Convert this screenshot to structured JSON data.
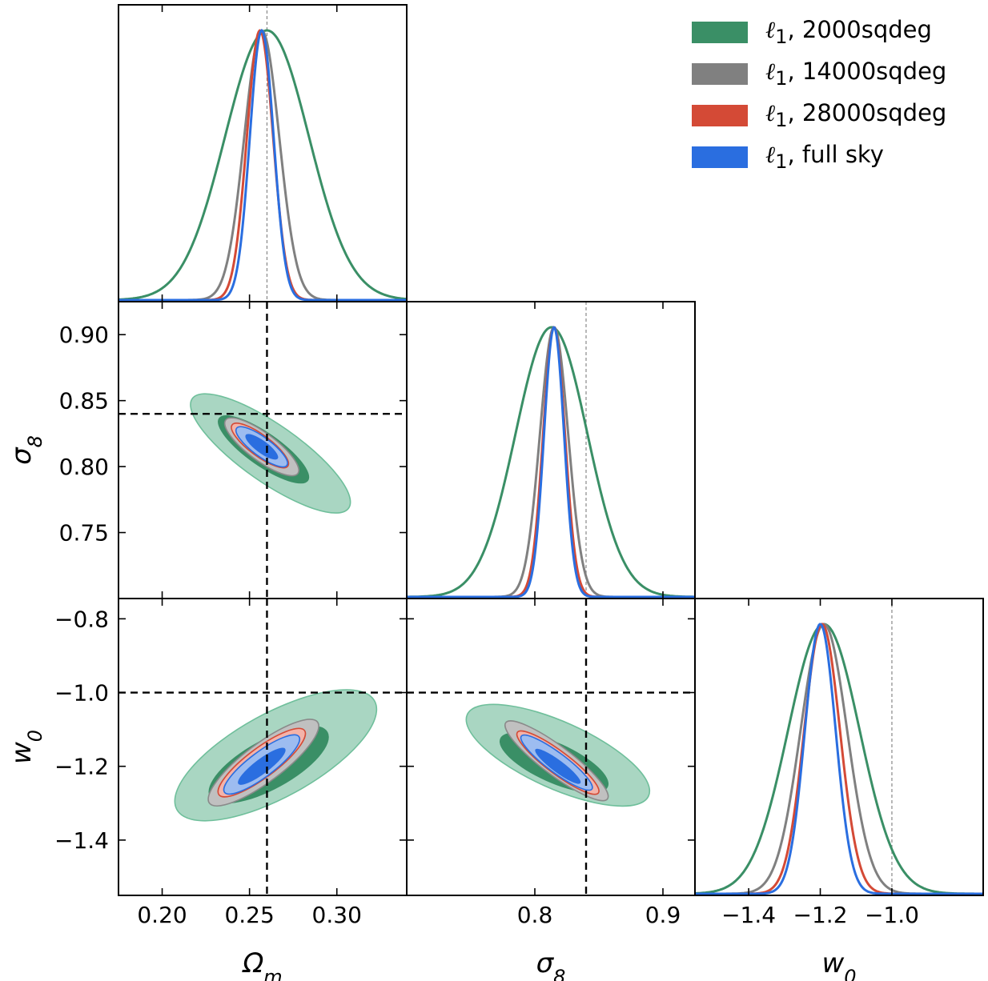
{
  "chart_data": {
    "type": "corner-triangle",
    "parameters": [
      {
        "key": "omega_m",
        "label": "Ω",
        "sub": "m",
        "range": [
          0.175,
          0.34
        ],
        "ticks": [
          0.2,
          0.25,
          0.3
        ],
        "tick_labels": [
          "0.20",
          "0.25",
          "0.30"
        ],
        "fiducial": 0.26
      },
      {
        "key": "sigma_8",
        "label": "σ",
        "sub": "8",
        "range": [
          0.7,
          0.925
        ],
        "ticks": [
          0.75,
          0.8,
          0.85,
          0.9
        ],
        "tick_labels": [
          "0.75",
          "0.80",
          "0.85",
          "0.90"
        ],
        "xticks": [
          0.8,
          0.9
        ],
        "xtick_labels": [
          "0.8",
          "0.9"
        ],
        "fiducial": 0.84
      },
      {
        "key": "w0",
        "label": "w",
        "sub": "0",
        "range": [
          -1.55,
          -0.745
        ],
        "ticks": [
          -1.4,
          -1.2,
          -1.0,
          -0.8
        ],
        "tick_labels": [
          "−1.4",
          "−1.2",
          "−1.0",
          "−0.8"
        ],
        "xticks": [
          -1.4,
          -1.2,
          -1.0
        ],
        "xtick_labels": [
          "−1.4",
          "−1.2",
          "−1.0"
        ],
        "fiducial": -1.0
      }
    ],
    "series": [
      {
        "name": "ℓ1, 2000sqdeg",
        "symbol": "ℓ",
        "sub": "1",
        "rest": ", 2000sqdeg",
        "color": "#3a8f66",
        "omega_m": {
          "mean": 0.26,
          "sd": 0.024
        },
        "sigma_8": {
          "mean": 0.813,
          "sd": 0.028
        },
        "w0": {
          "mean": -1.19,
          "sd": 0.1
        }
      },
      {
        "name": "ℓ1, 14000sqdeg",
        "symbol": "ℓ",
        "sub": "1",
        "rest": ", 14000sqdeg",
        "color": "#808080",
        "omega_m": {
          "mean": 0.257,
          "sd": 0.01
        },
        "sigma_8": {
          "mean": 0.815,
          "sd": 0.011
        },
        "w0": {
          "mean": -1.19,
          "sd": 0.065
        }
      },
      {
        "name": "ℓ1, 28000sqdeg",
        "symbol": "ℓ",
        "sub": "1",
        "rest": ", 28000sqdeg",
        "color": "#d44a36",
        "omega_m": {
          "mean": 0.256,
          "sd": 0.0075
        },
        "sigma_8": {
          "mean": 0.815,
          "sd": 0.0085
        },
        "w0": {
          "mean": -1.195,
          "sd": 0.05
        }
      },
      {
        "name": "ℓ1, full sky",
        "symbol": "ℓ",
        "sub": "1",
        "rest": ", full sky",
        "color": "#2a6ee0",
        "omega_m": {
          "mean": 0.257,
          "sd": 0.0068
        },
        "sigma_8": {
          "mean": 0.815,
          "sd": 0.0078
        },
        "w0": {
          "mean": -1.2,
          "sd": 0.043
        }
      }
    ],
    "contours_2d": {
      "omega_m__sigma_8": [
        {
          "series": 0,
          "level": "95%",
          "fill": "#a9d6c2",
          "stroke": "#6fbf9b",
          "center": [
            0.262,
            0.81
          ],
          "half_axes": [
            0.058,
            0.052
          ],
          "tilt": 0.7,
          "extra": [
            0.3,
            0.76
          ]
        },
        {
          "series": 0,
          "level": "68%",
          "fill": "#3a8f66",
          "center": [
            0.258,
            0.813
          ],
          "half_axes": [
            0.033,
            0.03
          ],
          "tilt": 0.7
        },
        {
          "series": 1,
          "level": "95%",
          "fill": "#c0c0c0",
          "stroke": "#8a8a8a",
          "center": [
            0.257,
            0.815
          ],
          "half_axes": [
            0.027,
            0.025
          ],
          "tilt": 0.74
        },
        {
          "series": 2,
          "level": "95%",
          "fill": "#f4b3a9",
          "stroke": "#d44a36",
          "center": [
            0.256,
            0.816
          ],
          "half_axes": [
            0.021,
            0.019
          ],
          "tilt": 0.74
        },
        {
          "series": 3,
          "level": "95%",
          "fill": "#9dbcf0",
          "stroke": "#2a6ee0",
          "center": [
            0.257,
            0.815
          ],
          "half_axes": [
            0.019,
            0.017
          ],
          "tilt": 0.74
        },
        {
          "series": 3,
          "level": "68%",
          "fill": "#2a6ee0",
          "center": [
            0.257,
            0.815
          ],
          "half_axes": [
            0.012,
            0.011
          ],
          "tilt": 0.74
        }
      ],
      "omega_m__w0": [
        {
          "series": 0,
          "level": "95%",
          "fill": "#a9d6c2",
          "stroke": "#6fbf9b",
          "center": [
            0.265,
            -1.17
          ],
          "half_axes": [
            0.06,
            0.27
          ],
          "tilt": -0.55
        },
        {
          "series": 0,
          "level": "68%",
          "fill": "#3a8f66",
          "center": [
            0.261,
            -1.195
          ],
          "half_axes": [
            0.036,
            0.16
          ],
          "tilt": -0.55
        },
        {
          "series": 1,
          "level": "95%",
          "fill": "#c0c0c0",
          "stroke": "#8a8a8a",
          "center": [
            0.258,
            -1.19
          ],
          "half_axes": [
            0.026,
            0.2
          ],
          "tilt": -0.75
        },
        {
          "series": 2,
          "level": "95%",
          "fill": "#f4b3a9",
          "stroke": "#d44a36",
          "center": [
            0.257,
            -1.19
          ],
          "half_axes": [
            0.02,
            0.16
          ],
          "tilt": -0.75
        },
        {
          "series": 3,
          "level": "95%",
          "fill": "#9dbcf0",
          "stroke": "#2a6ee0",
          "center": [
            0.257,
            -1.195
          ],
          "half_axes": [
            0.017,
            0.14
          ],
          "tilt": -0.75
        },
        {
          "series": 3,
          "level": "68%",
          "fill": "#2a6ee0",
          "center": [
            0.257,
            -1.2
          ],
          "half_axes": [
            0.01,
            0.09
          ],
          "tilt": -0.75
        }
      ],
      "sigma_8__w0": [
        {
          "series": 0,
          "level": "95%",
          "fill": "#a9d6c2",
          "stroke": "#6fbf9b",
          "center": [
            0.818,
            -1.17
          ],
          "half_axes": [
            0.062,
            0.27
          ],
          "tilt": 0.45
        },
        {
          "series": 0,
          "level": "68%",
          "fill": "#3a8f66",
          "center": [
            0.815,
            -1.19
          ],
          "half_axes": [
            0.037,
            0.16
          ],
          "tilt": 0.45
        },
        {
          "series": 1,
          "level": "95%",
          "fill": "#c0c0c0",
          "stroke": "#8a8a8a",
          "center": [
            0.817,
            -1.185
          ],
          "half_axes": [
            0.027,
            0.2
          ],
          "tilt": 0.75
        },
        {
          "series": 2,
          "level": "95%",
          "fill": "#f4b3a9",
          "stroke": "#d44a36",
          "center": [
            0.818,
            -1.19
          ],
          "half_axes": [
            0.021,
            0.16
          ],
          "tilt": 0.75
        },
        {
          "series": 3,
          "level": "95%",
          "fill": "#9dbcf0",
          "stroke": "#2a6ee0",
          "center": [
            0.817,
            -1.19
          ],
          "half_axes": [
            0.018,
            0.14
          ],
          "tilt": 0.75
        },
        {
          "series": 3,
          "level": "68%",
          "fill": "#2a6ee0",
          "center": [
            0.818,
            -1.2
          ],
          "half_axes": [
            0.011,
            0.09
          ],
          "tilt": 0.75
        }
      ]
    },
    "fiducial_line_color": "#000000",
    "legend_position": "top-right"
  }
}
